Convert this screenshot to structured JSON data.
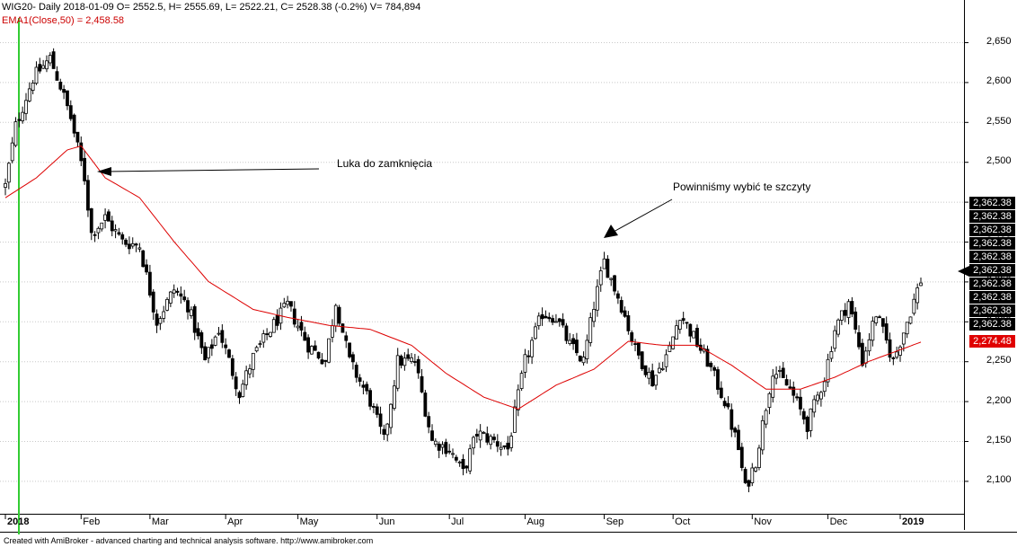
{
  "header": {
    "ohlc_line": "WIG20- Daily 2018-01-09 O= 2552.5, H= 2555.69, L= 2522.21, C= 2528.38 (-0.2%) V= 784,894",
    "ema_line": "EMA1(Close,50) = 2,458.58"
  },
  "footer": "Created with AmiBroker - advanced charting and technical analysis software. http://www.amibroker.com",
  "annotations": {
    "gap_label": "Luka do zamknięcia",
    "peak_label": "Powinniśmy wybić te szczyty"
  },
  "price_boxes": [
    "2,362.38",
    "2,362.38",
    "2,362.38",
    "2,362.38",
    "2,362.38",
    "2,362.38",
    "2,362.38",
    "2,362.38",
    "2,362.38",
    "2,362.38"
  ],
  "ema_box": "2,274.48",
  "colors": {
    "candles": "#000000",
    "ema": "#dd0000",
    "grid": "#c8c8c8",
    "cursor": "#33cc33"
  },
  "chart_data": {
    "type": "candlestick",
    "ylim": [
      2075,
      2675
    ],
    "y_ticks": [
      "2,100",
      "2,150",
      "2,200",
      "2,250",
      "2,300",
      "2,350",
      "2,400",
      "2,450",
      "2,500",
      "2,550",
      "2,600",
      "2,650"
    ],
    "x_ticks": [
      "2018",
      "Feb",
      "Mar",
      "Apr",
      "May",
      "Jun",
      "Jul",
      "Aug",
      "Sep",
      "Oct",
      "Nov",
      "Dec",
      "2019"
    ],
    "x_tick_bold": [
      true,
      false,
      false,
      false,
      false,
      false,
      false,
      false,
      false,
      false,
      false,
      false,
      true
    ],
    "grid": true,
    "close_waypoints": [
      [
        "2018-01-02",
        2470
      ],
      [
        "2018-01-05",
        2545
      ],
      [
        "2018-01-12",
        2605
      ],
      [
        "2018-01-19",
        2630
      ],
      [
        "2018-01-24",
        2595
      ],
      [
        "2018-01-29",
        2555
      ],
      [
        "2018-02-02",
        2480
      ],
      [
        "2018-02-06",
        2410
      ],
      [
        "2018-02-12",
        2430
      ],
      [
        "2018-02-19",
        2400
      ],
      [
        "2018-02-26",
        2395
      ],
      [
        "2018-03-05",
        2300
      ],
      [
        "2018-03-12",
        2340
      ],
      [
        "2018-03-16",
        2320
      ],
      [
        "2018-03-23",
        2250
      ],
      [
        "2018-03-29",
        2290
      ],
      [
        "2018-04-06",
        2210
      ],
      [
        "2018-04-12",
        2255
      ],
      [
        "2018-04-19",
        2290
      ],
      [
        "2018-04-26",
        2320
      ],
      [
        "2018-05-04",
        2270
      ],
      [
        "2018-05-11",
        2250
      ],
      [
        "2018-05-16",
        2325
      ],
      [
        "2018-05-22",
        2250
      ],
      [
        "2018-05-30",
        2200
      ],
      [
        "2018-06-05",
        2150
      ],
      [
        "2018-06-11",
        2250
      ],
      [
        "2018-06-18",
        2250
      ],
      [
        "2018-06-25",
        2150
      ],
      [
        "2018-07-02",
        2140
      ],
      [
        "2018-07-06",
        2110
      ],
      [
        "2018-07-12",
        2160
      ],
      [
        "2018-07-19",
        2150
      ],
      [
        "2018-07-25",
        2140
      ],
      [
        "2018-08-01",
        2250
      ],
      [
        "2018-08-08",
        2310
      ],
      [
        "2018-08-14",
        2305
      ],
      [
        "2018-08-20",
        2270
      ],
      [
        "2018-08-24",
        2250
      ],
      [
        "2018-08-29",
        2320
      ],
      [
        "2018-09-03",
        2375
      ],
      [
        "2018-09-10",
        2320
      ],
      [
        "2018-09-14",
        2265
      ],
      [
        "2018-09-21",
        2225
      ],
      [
        "2018-09-28",
        2265
      ],
      [
        "2018-10-03",
        2310
      ],
      [
        "2018-10-09",
        2280
      ],
      [
        "2018-10-15",
        2250
      ],
      [
        "2018-10-22",
        2200
      ],
      [
        "2018-10-26",
        2140
      ],
      [
        "2018-10-30",
        2090
      ],
      [
        "2018-11-02",
        2125
      ],
      [
        "2018-11-09",
        2240
      ],
      [
        "2018-11-16",
        2215
      ],
      [
        "2018-11-23",
        2170
      ],
      [
        "2018-11-30",
        2230
      ],
      [
        "2018-12-05",
        2290
      ],
      [
        "2018-12-11",
        2325
      ],
      [
        "2018-12-17",
        2250
      ],
      [
        "2018-12-21",
        2310
      ],
      [
        "2018-12-28",
        2250
      ],
      [
        "2019-01-03",
        2300
      ],
      [
        "2019-01-09",
        2352
      ]
    ],
    "ema50_waypoints": [
      [
        "2018-01-02",
        2455
      ],
      [
        "2018-01-15",
        2480
      ],
      [
        "2018-01-26",
        2515
      ],
      [
        "2018-02-01",
        2520
      ],
      [
        "2018-02-12",
        2480
      ],
      [
        "2018-02-26",
        2455
      ],
      [
        "2018-03-12",
        2400
      ],
      [
        "2018-03-26",
        2350
      ],
      [
        "2018-04-12",
        2315
      ],
      [
        "2018-04-26",
        2305
      ],
      [
        "2018-05-14",
        2295
      ],
      [
        "2018-05-30",
        2290
      ],
      [
        "2018-06-15",
        2270
      ],
      [
        "2018-06-29",
        2235
      ],
      [
        "2018-07-16",
        2205
      ],
      [
        "2018-07-30",
        2190
      ],
      [
        "2018-08-14",
        2220
      ],
      [
        "2018-08-29",
        2240
      ],
      [
        "2018-09-12",
        2275
      ],
      [
        "2018-09-26",
        2270
      ],
      [
        "2018-10-10",
        2270
      ],
      [
        "2018-10-24",
        2245
      ],
      [
        "2018-11-07",
        2215
      ],
      [
        "2018-11-21",
        2215
      ],
      [
        "2018-12-05",
        2230
      ],
      [
        "2018-12-19",
        2250
      ],
      [
        "2019-01-09",
        2274
      ]
    ]
  }
}
